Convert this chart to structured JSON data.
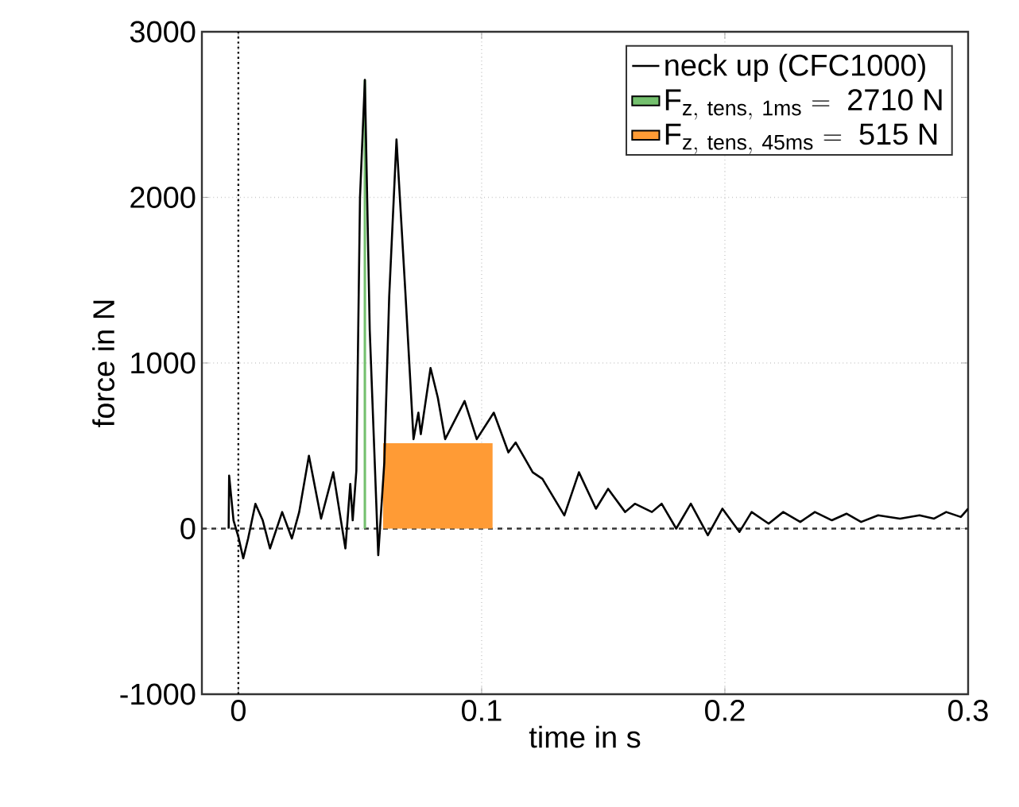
{
  "chart_data": {
    "type": "line",
    "xlabel": "time in s",
    "ylabel": "force in N",
    "xlim": [
      -0.015,
      0.3
    ],
    "ylim": [
      -1000,
      3000
    ],
    "xticks": [
      0,
      0.1,
      0.2,
      0.3
    ],
    "yticks": [
      -1000,
      0,
      1000,
      2000,
      3000
    ],
    "grid": true,
    "legend": "top right",
    "ref_lines": [
      {
        "axis": "x",
        "value": 0,
        "color": "#000000",
        "line_style": "dotted"
      },
      {
        "axis": "y",
        "value": 0,
        "color": "#333333",
        "line_style": "dashed"
      }
    ],
    "series": [
      {
        "name": "neck up (CFC1000)",
        "color": "#000000",
        "x": [
          -0.004,
          -0.0038,
          -0.003,
          -0.002,
          0,
          0.002,
          0.004,
          0.007,
          0.01,
          0.013,
          0.018,
          0.022,
          0.025,
          0.029,
          0.034,
          0.039,
          0.044,
          0.046,
          0.047,
          0.0485,
          0.049,
          0.05,
          0.052,
          0.054,
          0.0575,
          0.06,
          0.062,
          0.065,
          0.0686,
          0.072,
          0.074,
          0.075,
          0.079,
          0.082,
          0.085,
          0.093,
          0.098,
          0.105,
          0.111,
          0.114,
          0.121,
          0.125,
          0.134,
          0.14,
          0.147,
          0.152,
          0.159,
          0.163,
          0.17,
          0.174,
          0.18,
          0.186,
          0.193,
          0.199,
          0.206,
          0.211,
          0.218,
          0.224,
          0.231,
          0.237,
          0.244,
          0.25,
          0.256,
          0.263,
          0.272,
          0.28,
          0.286,
          0.291,
          0.297,
          0.3
        ],
        "values": [
          0,
          320,
          200,
          50,
          -50,
          -180,
          -60,
          150,
          50,
          -120,
          100,
          -60,
          100,
          440,
          60,
          340,
          -120,
          270,
          50,
          350,
          900,
          2000,
          2710,
          1200,
          -160,
          400,
          1400,
          2350,
          1440,
          540,
          700,
          570,
          970,
          790,
          540,
          770,
          540,
          700,
          460,
          520,
          340,
          300,
          80,
          340,
          120,
          240,
          100,
          150,
          100,
          150,
          0,
          150,
          -40,
          120,
          -20,
          100,
          30,
          100,
          40,
          100,
          50,
          90,
          40,
          80,
          60,
          80,
          60,
          100,
          70,
          120
        ]
      },
      {
        "name": "\\mathrm{F}_{\\mathrm{z,\\ tens,\\ 1ms}}\\mathrm{\\ =\\ 2710\\ N}",
        "color": "#74c06e",
        "type": "area",
        "x": [
          0.0515,
          0.0525
        ],
        "values": [
          2710,
          2710
        ]
      },
      {
        "name": "\\mathrm{F}_{\\mathrm{z,\\ tens,\\ 45ms}}\\mathrm{\\ =\\ 515\\ N}",
        "color": "#ff9b35",
        "type": "area",
        "x": [
          0.0595,
          0.1045
        ],
        "values": [
          515,
          515
        ]
      }
    ]
  }
}
